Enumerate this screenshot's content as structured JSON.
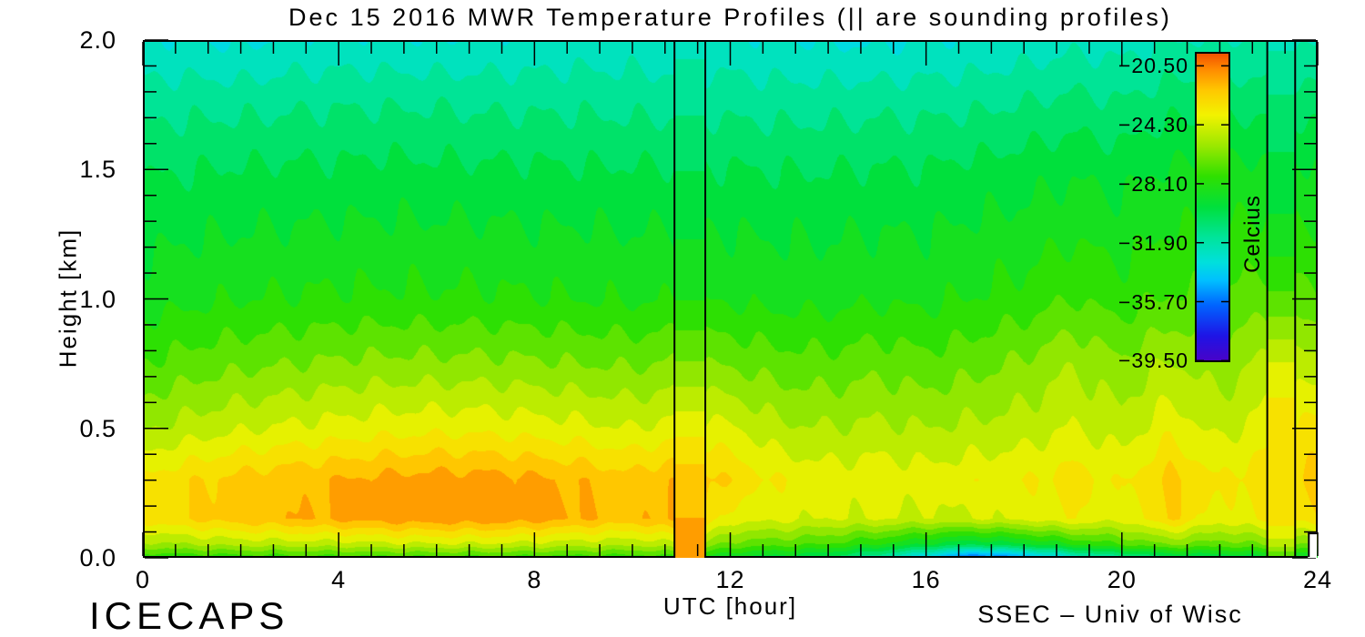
{
  "title": "Dec 15 2016 MWR Temperature Profiles (|| are sounding profiles)",
  "footer": {
    "left": "ICECAPS",
    "right": "SSEC – Univ of Wisc"
  },
  "axes": {
    "x": {
      "label": "UTC [hour]",
      "range": [
        0,
        24
      ],
      "tick_values": [
        0,
        4,
        8,
        12,
        16,
        20,
        24
      ],
      "tick_labels": [
        "0",
        "4",
        "8",
        "12",
        "16",
        "20",
        "24"
      ],
      "minor_per_major": 6
    },
    "y": {
      "label": "Height [km]",
      "range": [
        0,
        2
      ],
      "tick_values": [
        2.0,
        1.5,
        1.0,
        0.5,
        0.0
      ],
      "tick_labels": [
        "2.0",
        "1.5",
        "1.0",
        "0.5",
        "0.0"
      ],
      "minor_per_major": 5
    }
  },
  "colorbar": {
    "label": "Celcius",
    "tick_values": [
      -20.5,
      -24.3,
      -28.1,
      -31.9,
      -35.7,
      -39.5
    ],
    "tick_labels": [
      "−20.50",
      "−24.30",
      "−28.10",
      "−31.90",
      "−35.70",
      "−39.50"
    ]
  },
  "colors": {
    "background": "#FFFFFF",
    "frame": "#000000",
    "text": "#000000"
  },
  "chart_data": {
    "type": "heatmap",
    "title": "Dec 15 2016 MWR Temperature Profiles (|| are sounding profiles)",
    "xlabel": "UTC [hour]",
    "ylabel": "Height [km]",
    "units": "Celcius",
    "xlim": [
      0,
      24
    ],
    "ylim": [
      0,
      2
    ],
    "scale_range_c": [
      -39.6,
      -19.6
    ],
    "n_contour_levels": 21,
    "x_hours": [
      0,
      1,
      2,
      3,
      4,
      5,
      6,
      7,
      8,
      9,
      10,
      11,
      12,
      13,
      14,
      15,
      16,
      17,
      18,
      19,
      20,
      21,
      22,
      23,
      24
    ],
    "y_heights_km": [
      0,
      0.05,
      0.15,
      0.3,
      0.5,
      0.75,
      1.0,
      1.25,
      1.5,
      1.75,
      2.0
    ],
    "temperature_c_rows_bottom_up": [
      [
        -28.0,
        -27.9,
        -27.8,
        -27.7,
        -27.6,
        -27.5,
        -27.5,
        -27.5,
        -27.6,
        -27.7,
        -27.8,
        -27.6,
        -29.2,
        -29.6,
        -30.3,
        -31.8,
        -34.0,
        -36.3,
        -35.0,
        -33.0,
        -31.5,
        -30.3,
        -30.0,
        -29.4,
        -29.0
      ],
      [
        -25.6,
        -25.3,
        -25.0,
        -24.9,
        -24.8,
        -24.6,
        -24.5,
        -24.5,
        -24.7,
        -24.9,
        -25.1,
        -24.6,
        -26.6,
        -26.9,
        -27.3,
        -28.2,
        -29.2,
        -30.0,
        -29.3,
        -28.2,
        -27.2,
        -26.2,
        -26.8,
        -26.2,
        -26.2
      ],
      [
        -23.0,
        -22.4,
        -21.9,
        -21.6,
        -21.3,
        -21.0,
        -20.9,
        -20.9,
        -21.1,
        -21.5,
        -21.9,
        -21.1,
        -23.9,
        -24.1,
        -24.4,
        -24.3,
        -24.6,
        -24.4,
        -24.1,
        -23.5,
        -24.1,
        -22.4,
        -23.9,
        -23.2,
        -22.8
      ],
      [
        -23.2,
        -22.6,
        -22.1,
        -21.8,
        -21.5,
        -21.2,
        -21.1,
        -21.1,
        -21.3,
        -21.7,
        -22.1,
        -21.4,
        -22.6,
        -23.5,
        -23.9,
        -23.7,
        -23.9,
        -23.7,
        -23.5,
        -23.0,
        -23.6,
        -22.2,
        -23.4,
        -22.7,
        -22.2
      ],
      [
        -25.4,
        -24.9,
        -24.5,
        -24.2,
        -24.0,
        -23.8,
        -23.7,
        -23.7,
        -23.9,
        -24.1,
        -24.4,
        -23.9,
        -24.2,
        -25.1,
        -25.3,
        -25.1,
        -25.3,
        -25.1,
        -24.9,
        -24.3,
        -24.9,
        -23.7,
        -24.7,
        -23.9,
        -23.0
      ],
      [
        -27.2,
        -26.8,
        -26.5,
        -26.3,
        -26.1,
        -26.0,
        -26.0,
        -26.0,
        -26.1,
        -26.3,
        -26.4,
        -26.1,
        -26.4,
        -26.8,
        -26.9,
        -26.6,
        -26.9,
        -26.6,
        -26.1,
        -25.4,
        -26.1,
        -25.2,
        -25.9,
        -25.0,
        -25.0
      ],
      [
        -28.6,
        -28.4,
        -28.2,
        -28.1,
        -28.0,
        -28.0,
        -28.0,
        -28.0,
        -28.1,
        -28.2,
        -28.3,
        -28.2,
        -28.3,
        -28.5,
        -28.5,
        -28.3,
        -28.4,
        -28.1,
        -27.8,
        -27.2,
        -27.7,
        -27.1,
        -27.1,
        -26.7,
        -27.0
      ],
      [
        -29.4,
        -29.2,
        -29.1,
        -29.0,
        -28.9,
        -28.9,
        -28.9,
        -28.9,
        -29.0,
        -29.0,
        -29.1,
        -29.0,
        -29.1,
        -29.2,
        -29.2,
        -29.1,
        -29.1,
        -28.9,
        -28.7,
        -28.3,
        -28.6,
        -28.1,
        -28.1,
        -27.8,
        -28.0
      ],
      [
        -30.2,
        -30.1,
        -30.0,
        -29.9,
        -29.9,
        -29.8,
        -29.9,
        -29.9,
        -29.9,
        -30.0,
        -30.0,
        -30.0,
        -30.0,
        -30.1,
        -30.1,
        -30.0,
        -30.0,
        -29.8,
        -29.6,
        -29.3,
        -29.5,
        -29.0,
        -29.0,
        -28.8,
        -29.0
      ],
      [
        -31.4,
        -31.3,
        -31.3,
        -31.2,
        -31.1,
        -31.1,
        -31.1,
        -31.2,
        -31.2,
        -31.2,
        -31.3,
        -31.3,
        -31.3,
        -31.4,
        -31.4,
        -31.3,
        -31.3,
        -31.2,
        -31.0,
        -30.7,
        -30.9,
        -30.4,
        -30.4,
        -30.3,
        -30.5
      ],
      [
        -32.8,
        -32.9,
        -33.1,
        -32.8,
        -32.7,
        -32.8,
        -32.9,
        -32.8,
        -32.7,
        -32.6,
        -32.6,
        -32.7,
        -32.7,
        -32.9,
        -33.0,
        -33.1,
        -32.9,
        -32.8,
        -32.6,
        -32.3,
        -32.4,
        -32.0,
        -31.9,
        -32.0,
        -32.2
      ]
    ],
    "sounding_profiles": [
      {
        "utc_range": [
          10.86,
          11.49
        ],
        "values_c_bottom_up": [
          -21.0,
          -21.2,
          -21.5,
          -21.9,
          -23.7,
          -26.2,
          -28.2,
          -29.2,
          -30.1,
          -31.2,
          -32.3
        ]
      },
      {
        "utc_range": [
          22.97,
          23.54
        ],
        "values_c_bottom_up": [
          -27.5,
          -24.8,
          -22.9,
          -22.7,
          -22.6,
          -24.3,
          -27.0,
          -28.8,
          -29.8,
          -30.8,
          -32.2
        ]
      }
    ],
    "missing_region": {
      "utc_range": [
        23.8,
        24.0
      ],
      "height_range_km": [
        0,
        0.098
      ]
    },
    "colormap": [
      [
        0.0,
        "#4803C8"
      ],
      [
        0.08,
        "#1E14E6"
      ],
      [
        0.18,
        "#0064FF"
      ],
      [
        0.26,
        "#00BFFF"
      ],
      [
        0.32,
        "#00E0DC"
      ],
      [
        0.4,
        "#00E49B"
      ],
      [
        0.5,
        "#00E03C"
      ],
      [
        0.6,
        "#2FE000"
      ],
      [
        0.7,
        "#9BE800"
      ],
      [
        0.8,
        "#F2F200"
      ],
      [
        0.88,
        "#FFC800"
      ],
      [
        0.95,
        "#FF8A00"
      ],
      [
        1.0,
        "#F25200"
      ]
    ],
    "legend_position": "right"
  }
}
